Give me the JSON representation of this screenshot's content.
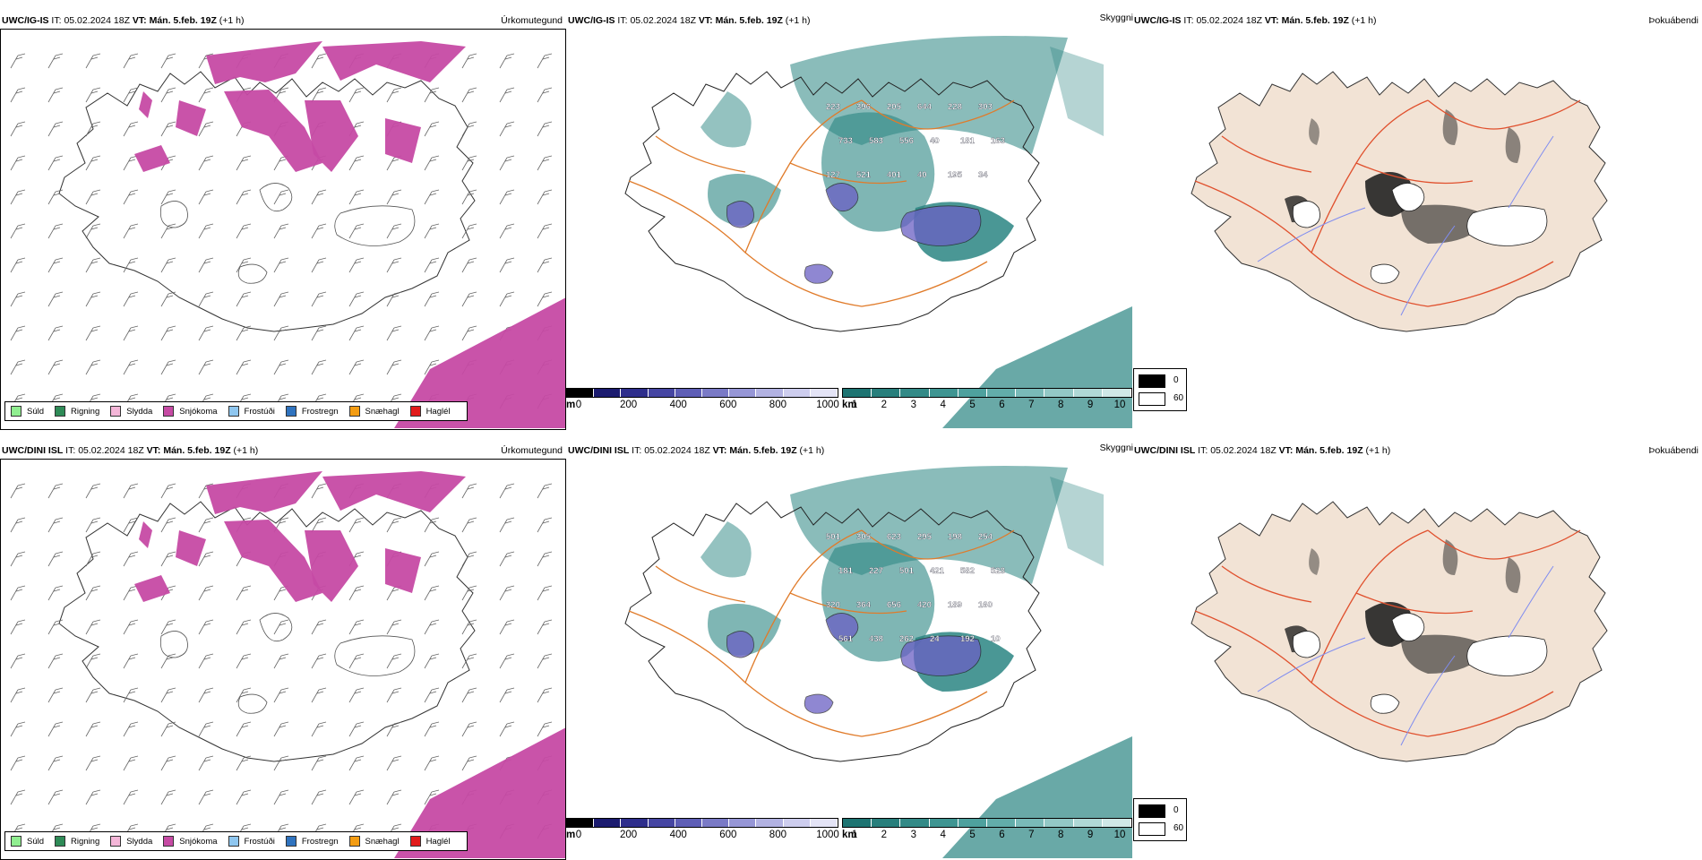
{
  "rows": [
    {
      "model": "UWC/IG-IS",
      "it_label": "IT:",
      "it_value": "05.02.2024 18Z",
      "vt_label": "VT:",
      "vt_value": "Mán. 5.feb. 19Z",
      "offset": "(+1 h)",
      "cloud_numbers": [
        "223",
        "396",
        "205",
        "644",
        "228",
        "303",
        "733",
        "583",
        "556",
        "40",
        "181",
        "163",
        "127",
        "521",
        "401",
        "40",
        "195",
        "34"
      ]
    },
    {
      "model": "UWC/DINI ISL",
      "it_label": "IT:",
      "it_value": "05.02.2024 18Z",
      "vt_label": "VT:",
      "vt_value": "Mán. 5.feb. 19Z",
      "offset": "(+1 h)",
      "cloud_numbers": [
        "501",
        "305",
        "623",
        "295",
        "198",
        "254",
        "181",
        "227",
        "501",
        "421",
        "582",
        "528",
        "320",
        "364",
        "656",
        "420",
        "189",
        "160",
        "561",
        "438",
        "262",
        "24",
        "192",
        "10"
      ]
    }
  ],
  "panel_titles": {
    "precip": "Úrkomutegund",
    "visibility": "Skyggni",
    "fog": "Þokuábendi"
  },
  "precip_legend": [
    {
      "label": "Súld",
      "color": "#90ee90"
    },
    {
      "label": "Rigning",
      "color": "#2e8b57"
    },
    {
      "label": "Slydda",
      "color": "#f4b6d8"
    },
    {
      "label": "Snjókoma",
      "color": "#c64aa4"
    },
    {
      "label": "Frostúði",
      "color": "#8ec6ef"
    },
    {
      "label": "Frostregn",
      "color": "#2f73bf"
    },
    {
      "label": "Snæhagl",
      "color": "#f39c12"
    },
    {
      "label": "Haglél",
      "color": "#e21b1b"
    }
  ],
  "cloudbase_bar": {
    "unit": "m",
    "ticks": [
      "0",
      "200",
      "400",
      "600",
      "800",
      "1000"
    ],
    "colors": [
      "#000000",
      "#1b1b6f",
      "#2e2e8c",
      "#4646a3",
      "#5e5eb6",
      "#7a7ac6",
      "#9696d6",
      "#b2b2e2",
      "#cdcdee",
      "#e4e4f6"
    ]
  },
  "visibility_bar": {
    "unit": "km",
    "ticks": [
      "1",
      "2",
      "3",
      "4",
      "5",
      "6",
      "7",
      "8",
      "9",
      "10"
    ],
    "colors": [
      "#1e7472",
      "#287f7c",
      "#338a87",
      "#3f9592",
      "#4ea19e",
      "#62adaa",
      "#79bab8",
      "#93c8c6",
      "#b0d8d6",
      "#cfe8e7"
    ]
  },
  "fog_key": {
    "top_value": "0",
    "bottom_value": "60"
  },
  "colors": {
    "snow": "#c64aa4",
    "visibility_teal": "#2a8582",
    "roads": "#e07b2a",
    "fog_land": "#f2e3d5",
    "fog_roads": "#e0502d",
    "fog_rivers": "#7f8cf0"
  }
}
